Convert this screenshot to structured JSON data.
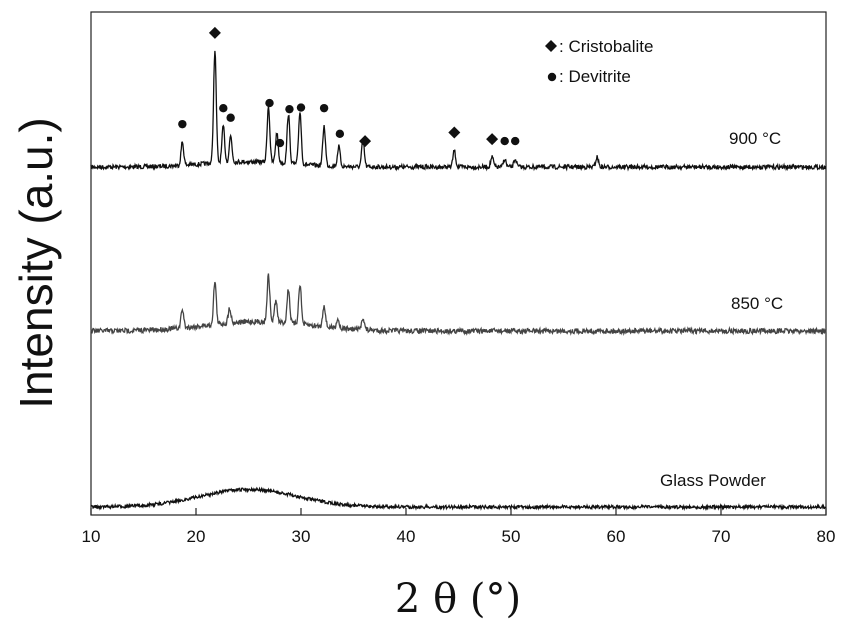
{
  "chart_data": {
    "type": "line",
    "xlabel": "2 θ (°)",
    "ylabel": "Intensity (a.u.)",
    "xlim": [
      10,
      80
    ],
    "xticks": [
      10,
      20,
      30,
      40,
      50,
      60,
      70,
      80
    ],
    "y_ticks_shown": false,
    "grid": false,
    "legend": {
      "placement": "top-right",
      "entries": [
        {
          "marker": "diamond",
          "label": ": Cristobalite"
        },
        {
          "marker": "circle",
          "label": ": Devitrite"
        }
      ]
    },
    "series": [
      {
        "name": "900 °C",
        "color": "#111111",
        "baseline": 1.0,
        "hump": {
          "center": 25,
          "width": 6,
          "height": 0.08
        },
        "peaks": [
          {
            "x": 18.7,
            "h": 0.35
          },
          {
            "x": 21.8,
            "h": 1.7
          },
          {
            "x": 22.6,
            "h": 0.55
          },
          {
            "x": 23.3,
            "h": 0.4
          },
          {
            "x": 26.9,
            "h": 0.85
          },
          {
            "x": 27.7,
            "h": 0.45
          },
          {
            "x": 28.8,
            "h": 0.75
          },
          {
            "x": 29.9,
            "h": 0.8
          },
          {
            "x": 32.2,
            "h": 0.6
          },
          {
            "x": 33.6,
            "h": 0.3
          },
          {
            "x": 35.9,
            "h": 0.4
          },
          {
            "x": 44.6,
            "h": 0.25
          },
          {
            "x": 48.2,
            "h": 0.15
          },
          {
            "x": 49.4,
            "h": 0.12
          },
          {
            "x": 50.4,
            "h": 0.12
          },
          {
            "x": 58.2,
            "h": 0.15
          }
        ]
      },
      {
        "name": "850 °C",
        "color": "#444444",
        "baseline": 1.0,
        "hump": {
          "center": 26,
          "width": 7,
          "height": 0.15
        },
        "peaks": [
          {
            "x": 18.7,
            "h": 0.3
          },
          {
            "x": 21.8,
            "h": 0.7
          },
          {
            "x": 23.2,
            "h": 0.25
          },
          {
            "x": 26.9,
            "h": 0.75
          },
          {
            "x": 27.6,
            "h": 0.35
          },
          {
            "x": 28.8,
            "h": 0.55
          },
          {
            "x": 29.9,
            "h": 0.65
          },
          {
            "x": 32.2,
            "h": 0.35
          },
          {
            "x": 33.5,
            "h": 0.15
          },
          {
            "x": 35.9,
            "h": 0.2
          }
        ]
      },
      {
        "name": "Glass Powder",
        "color": "#111111",
        "baseline": 1.0,
        "hump": {
          "center": 25,
          "width": 6.5,
          "height": 0.22
        },
        "peaks": []
      }
    ],
    "annotations": {
      "cristobalite_diamonds": [
        21.8,
        36.1,
        44.6,
        48.2
      ],
      "devitrite_circles": [
        18.7,
        22.6,
        23.3,
        27.0,
        28.0,
        28.9,
        30.0,
        32.2,
        33.7,
        48.2,
        49.4,
        50.4
      ]
    }
  }
}
